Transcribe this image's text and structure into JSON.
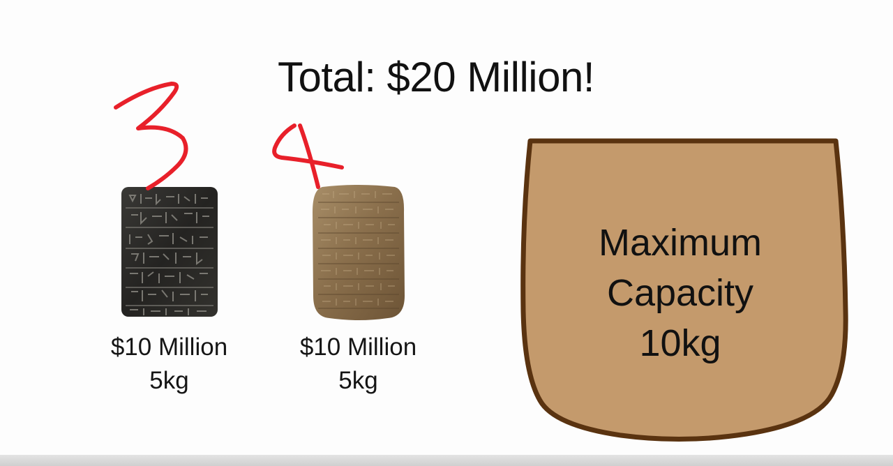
{
  "title": "Total: $20 Million!",
  "items": [
    {
      "price": "$10 Million",
      "weight": "5kg",
      "annotation": "3",
      "color": "#2b2a27"
    },
    {
      "price": "$10 Million",
      "weight": "5kg",
      "annotation": "4",
      "color": "#8a6f4c"
    }
  ],
  "bag": {
    "line1": "Maximum",
    "line2": "Capacity",
    "line3": "10kg",
    "fill_color": "#c49a6c",
    "stroke_color": "#5a3310"
  },
  "annotation_color": "#e8202a"
}
